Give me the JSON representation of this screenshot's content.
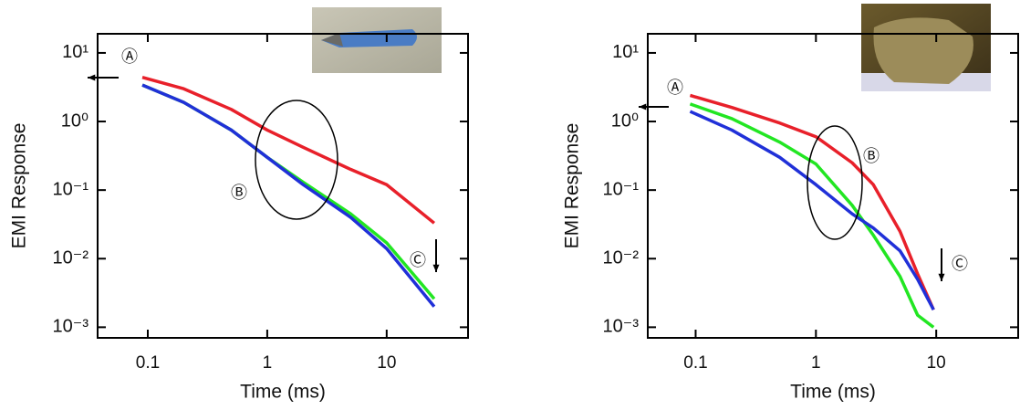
{
  "chart_data": [
    {
      "type": "line",
      "xlabel": "Time (ms)",
      "ylabel": "EMI Response",
      "log_x": true,
      "log_y": true,
      "x": [
        0.09,
        0.2,
        0.5,
        1,
        2,
        5,
        10,
        25
      ],
      "series": [
        {
          "color": "#e8202a",
          "values": [
            4.4,
            3.0,
            1.5,
            0.75,
            0.42,
            0.2,
            0.12,
            0.033
          ]
        },
        {
          "color": "#22e622",
          "values": [
            3.4,
            1.9,
            0.75,
            0.3,
            0.13,
            0.045,
            0.017,
            0.0026
          ]
        },
        {
          "color": "#2030d8",
          "values": [
            3.4,
            1.9,
            0.75,
            0.3,
            0.12,
            0.04,
            0.014,
            0.002
          ]
        }
      ],
      "xlim": [
        0.038,
        48
      ],
      "ylim": [
        0.0007,
        19
      ],
      "xticks": [
        0.1,
        1,
        10
      ],
      "yticks": [
        {
          "value": 10,
          "label": "10¹"
        },
        {
          "value": 1,
          "label": "10⁰"
        },
        {
          "value": 0.1,
          "label": "10⁻¹"
        },
        {
          "value": 0.01,
          "label": "10⁻²"
        },
        {
          "value": 0.001,
          "label": "10⁻³"
        }
      ],
      "annotations": [
        "Ⓐ",
        "Ⓑ",
        "Ⓒ"
      ]
    },
    {
      "type": "line",
      "xlabel": "Time (ms)",
      "ylabel": "EMI Response",
      "log_x": true,
      "log_y": true,
      "x": [
        0.09,
        0.2,
        0.5,
        1,
        2,
        3,
        5,
        7,
        9.5
      ],
      "series": [
        {
          "color": "#e8202a",
          "values": [
            2.4,
            1.6,
            0.95,
            0.6,
            0.25,
            0.12,
            0.025,
            0.006,
            0.0018
          ]
        },
        {
          "color": "#22e622",
          "values": [
            1.8,
            1.1,
            0.5,
            0.24,
            0.06,
            0.022,
            0.0055,
            0.0015,
            0.001
          ]
        },
        {
          "color": "#2030d8",
          "values": [
            1.4,
            0.75,
            0.3,
            0.12,
            0.045,
            0.028,
            0.013,
            0.005,
            0.0018
          ]
        }
      ],
      "xlim": [
        0.04,
        48
      ],
      "ylim": [
        0.0007,
        19
      ],
      "xticks": [
        0.1,
        1,
        10
      ],
      "yticks": [
        {
          "value": 10,
          "label": "10¹"
        },
        {
          "value": 1,
          "label": "10⁰"
        },
        {
          "value": 0.1,
          "label": "10⁻¹"
        },
        {
          "value": 0.01,
          "label": "10⁻²"
        },
        {
          "value": 0.001,
          "label": "10⁻³"
        }
      ],
      "annotations": [
        "Ⓐ",
        "Ⓑ",
        "Ⓒ"
      ]
    }
  ]
}
